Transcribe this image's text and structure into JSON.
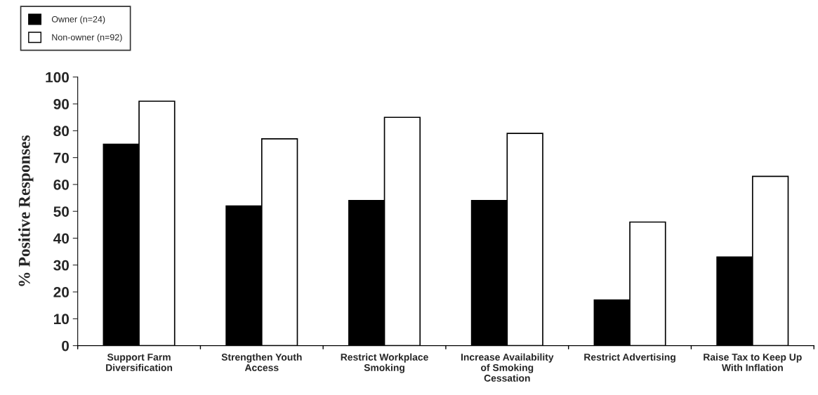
{
  "chart_data": {
    "type": "bar",
    "ylabel": "% Positive Responses",
    "categories": [
      "Support Farm\nDiversification",
      "Strengthen Youth\nAccess",
      "Restrict Workplace\nSmoking",
      "Increase Availability\nof Smoking\nCessation",
      "Restrict Advertising",
      "Raise Tax to Keep Up\nWith Inflation"
    ],
    "series": [
      {
        "name": "Owner (n=24)",
        "color": "#000000",
        "values": [
          75,
          52,
          54,
          54,
          17,
          33
        ]
      },
      {
        "name": "Non-owner (n=92)",
        "color": "#ffffff",
        "values": [
          91,
          77,
          85,
          79,
          46,
          63
        ]
      }
    ],
    "ylim": [
      0,
      100
    ],
    "yticks": [
      0,
      10,
      20,
      30,
      40,
      50,
      60,
      70,
      80,
      90,
      100
    ],
    "grid": false,
    "legend": "top left"
  }
}
